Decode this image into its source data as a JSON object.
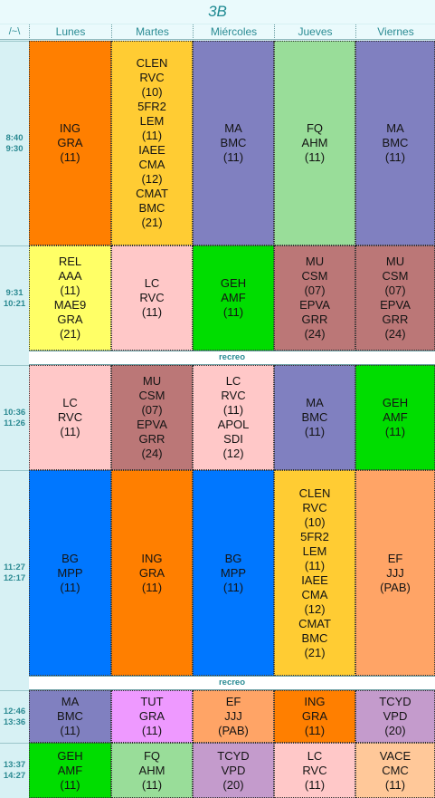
{
  "title": "3B",
  "corner_label": "/~\\",
  "days": [
    "Lunes",
    "Martes",
    "Miércoles",
    "Jueves",
    "Viernes"
  ],
  "periods": [
    {
      "start": "8:40",
      "end": "9:30"
    },
    {
      "start": "9:31",
      "end": "10:21"
    },
    {
      "start": "10:36",
      "end": "11:26"
    },
    {
      "start": "11:27",
      "end": "12:17"
    },
    {
      "start": "12:46",
      "end": "13:36"
    },
    {
      "start": "13:37",
      "end": "14:27"
    }
  ],
  "breaks": [
    "recreo",
    "recreo"
  ],
  "grid": [
    [
      {
        "lines": [
          "ING",
          "GRA",
          "(11)"
        ],
        "color": "#ff7f00"
      },
      {
        "lines": [
          "CLEN",
          "RVC",
          "(10)",
          "5FR2",
          "LEM",
          "(11)",
          "IAEE",
          "CMA",
          "(12)",
          "CMAT",
          "BMC",
          "(21)"
        ],
        "color": "#ffcc33"
      },
      {
        "lines": [
          "MA",
          "BMC",
          "(11)"
        ],
        "color": "#8080c0"
      },
      {
        "lines": [
          "FQ",
          "AHM",
          "(11)"
        ],
        "color": "#99dd99"
      },
      {
        "lines": [
          "MA",
          "BMC",
          "(11)"
        ],
        "color": "#8080c0"
      }
    ],
    [
      {
        "lines": [
          "REL",
          "AAA",
          "(11)",
          "MAE9",
          "GRA",
          "(21)"
        ],
        "color": "#ffff66"
      },
      {
        "lines": [
          "LC",
          "RVC",
          "(11)"
        ],
        "color": "#ffc8c8"
      },
      {
        "lines": [
          "GEH",
          "AMF",
          "(11)"
        ],
        "color": "#00dd00"
      },
      {
        "lines": [
          "MU",
          "CSM",
          "(07)",
          "EPVA",
          "GRR",
          "(24)"
        ],
        "color": "#bb7777"
      },
      {
        "lines": [
          "MU",
          "CSM",
          "(07)",
          "EPVA",
          "GRR",
          "(24)"
        ],
        "color": "#bb7777"
      }
    ],
    [
      {
        "lines": [
          "LC",
          "RVC",
          "(11)"
        ],
        "color": "#ffc8c8"
      },
      {
        "lines": [
          "MU",
          "CSM",
          "(07)",
          "EPVA",
          "GRR",
          "(24)"
        ],
        "color": "#bb7777"
      },
      {
        "lines": [
          "LC",
          "RVC",
          "(11)",
          "APOL",
          "SDI",
          "(12)"
        ],
        "color": "#ffc8c8"
      },
      {
        "lines": [
          "MA",
          "BMC",
          "(11)"
        ],
        "color": "#8080c0"
      },
      {
        "lines": [
          "GEH",
          "AMF",
          "(11)"
        ],
        "color": "#00dd00"
      }
    ],
    [
      {
        "lines": [
          "BG",
          "MPP",
          "(11)"
        ],
        "color": "#0077ff"
      },
      {
        "lines": [
          "ING",
          "GRA",
          "(11)"
        ],
        "color": "#ff7f00"
      },
      {
        "lines": [
          "BG",
          "MPP",
          "(11)"
        ],
        "color": "#0077ff"
      },
      {
        "lines": [
          "CLEN",
          "RVC",
          "(10)",
          "5FR2",
          "LEM",
          "(11)",
          "IAEE",
          "CMA",
          "(12)",
          "CMAT",
          "BMC",
          "(21)"
        ],
        "color": "#ffcc33"
      },
      {
        "lines": [
          "EF",
          "JJJ",
          "(PAB)"
        ],
        "color": "#ffa466"
      }
    ],
    [
      {
        "lines": [
          "MA",
          "BMC",
          "(11)"
        ],
        "color": "#8080c0"
      },
      {
        "lines": [
          "TUT",
          "GRA",
          "(11)"
        ],
        "color": "#ee99ff"
      },
      {
        "lines": [
          "EF",
          "JJJ",
          "(PAB)"
        ],
        "color": "#ffa466"
      },
      {
        "lines": [
          "ING",
          "GRA",
          "(11)"
        ],
        "color": "#ff7f00"
      },
      {
        "lines": [
          "TCYD",
          "VPD",
          "(20)"
        ],
        "color": "#c49bcc"
      }
    ],
    [
      {
        "lines": [
          "GEH",
          "AMF",
          "(11)"
        ],
        "color": "#00dd00"
      },
      {
        "lines": [
          "FQ",
          "AHM",
          "(11)"
        ],
        "color": "#99dd99"
      },
      {
        "lines": [
          "TCYD",
          "VPD",
          "(20)"
        ],
        "color": "#c49bcc"
      },
      {
        "lines": [
          "LC",
          "RVC",
          "(11)"
        ],
        "color": "#ffc8c8"
      },
      {
        "lines": [
          "VACE",
          "CMC",
          "(11)"
        ],
        "color": "#ffc899"
      }
    ]
  ]
}
